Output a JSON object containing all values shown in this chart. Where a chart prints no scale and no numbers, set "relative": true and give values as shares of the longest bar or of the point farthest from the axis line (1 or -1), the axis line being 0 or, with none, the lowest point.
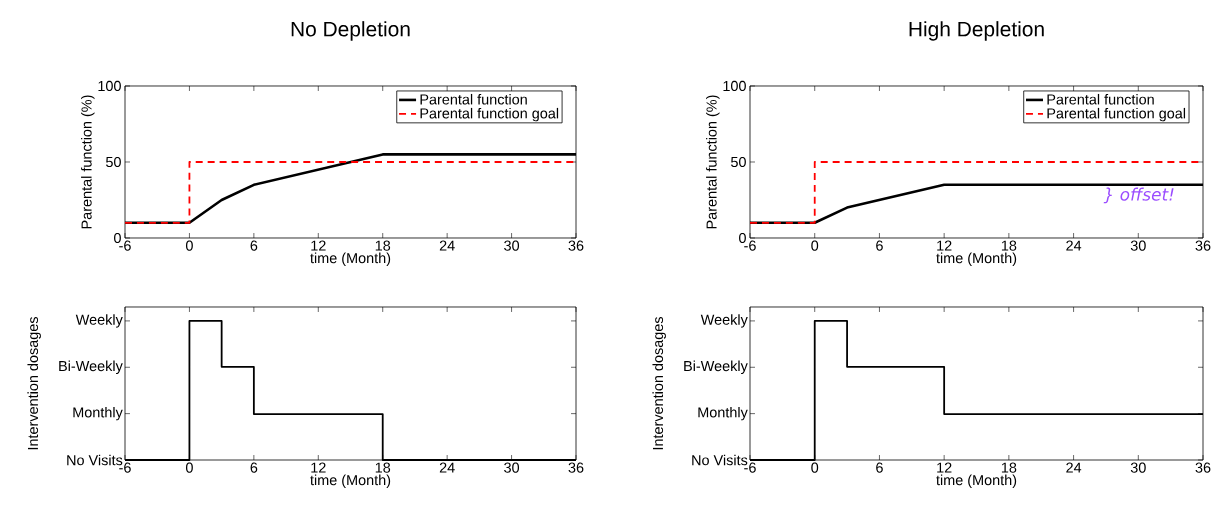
{
  "chart_data": [
    {
      "type": "line",
      "title": "No Depletion",
      "xlabel": "time (Month)",
      "ylabel": "Parental function (%)",
      "xlim": [
        -6,
        36
      ],
      "ylim": [
        0,
        100
      ],
      "xticks": [
        -6,
        0,
        6,
        12,
        18,
        24,
        30,
        36
      ],
      "yticks": [
        0,
        50,
        100
      ],
      "legend": "top right",
      "series": [
        {
          "name": "Parental function",
          "color": "#000000",
          "x": [
            -6,
            0,
            3,
            6,
            18,
            36
          ],
          "values": [
            10,
            10,
            25,
            35,
            55,
            55
          ]
        },
        {
          "name": "Parental function goal",
          "type": "step",
          "color": "#ff0000",
          "line_style": "dashed",
          "x": [
            -6,
            0,
            36
          ],
          "values": [
            10,
            50,
            50
          ]
        }
      ]
    },
    {
      "type": "line",
      "title": "High Depletion",
      "xlabel": "time (Month)",
      "ylabel": "Parental function (%)",
      "xlim": [
        -6,
        36
      ],
      "ylim": [
        0,
        100
      ],
      "xticks": [
        -6,
        0,
        6,
        12,
        18,
        24,
        30,
        36
      ],
      "yticks": [
        0,
        50,
        100
      ],
      "legend": "top right",
      "annotations": [
        "} offset!"
      ],
      "series": [
        {
          "name": "Parental function",
          "color": "#000000",
          "x": [
            -6,
            0,
            3,
            12,
            36
          ],
          "values": [
            10,
            10,
            20,
            35,
            35
          ]
        },
        {
          "name": "Parental function goal",
          "type": "step",
          "color": "#ff0000",
          "line_style": "dashed",
          "x": [
            -6,
            0,
            36
          ],
          "values": [
            10,
            50,
            50
          ]
        }
      ]
    },
    {
      "type": "step",
      "relative": true,
      "xlabel": "time (Month)",
      "ylabel": "Intervention dosages",
      "xlim": [
        -6,
        36
      ],
      "xticks": [
        -6,
        0,
        6,
        12,
        18,
        24,
        30,
        36
      ],
      "annotations": [
        "No Visits",
        "Monthly",
        "Bi-Weekly",
        "Weekly"
      ],
      "series": [
        {
          "color": "#000000",
          "x": [
            -6,
            0,
            3,
            6,
            18,
            36
          ],
          "values": [
            0,
            1,
            0.67,
            0.33,
            0,
            0
          ]
        }
      ]
    },
    {
      "type": "step",
      "relative": true,
      "xlabel": "time (Month)",
      "ylabel": "Intervention dosages",
      "xlim": [
        -6,
        36
      ],
      "xticks": [
        -6,
        0,
        6,
        12,
        18,
        24,
        30,
        36
      ],
      "annotations": [
        "No Visits",
        "Monthly",
        "Bi-Weekly",
        "Weekly"
      ],
      "series": [
        {
          "color": "#000000",
          "x": [
            -6,
            0,
            3,
            12,
            36
          ],
          "values": [
            0,
            1,
            0.67,
            0.33,
            0.33
          ]
        }
      ]
    }
  ]
}
